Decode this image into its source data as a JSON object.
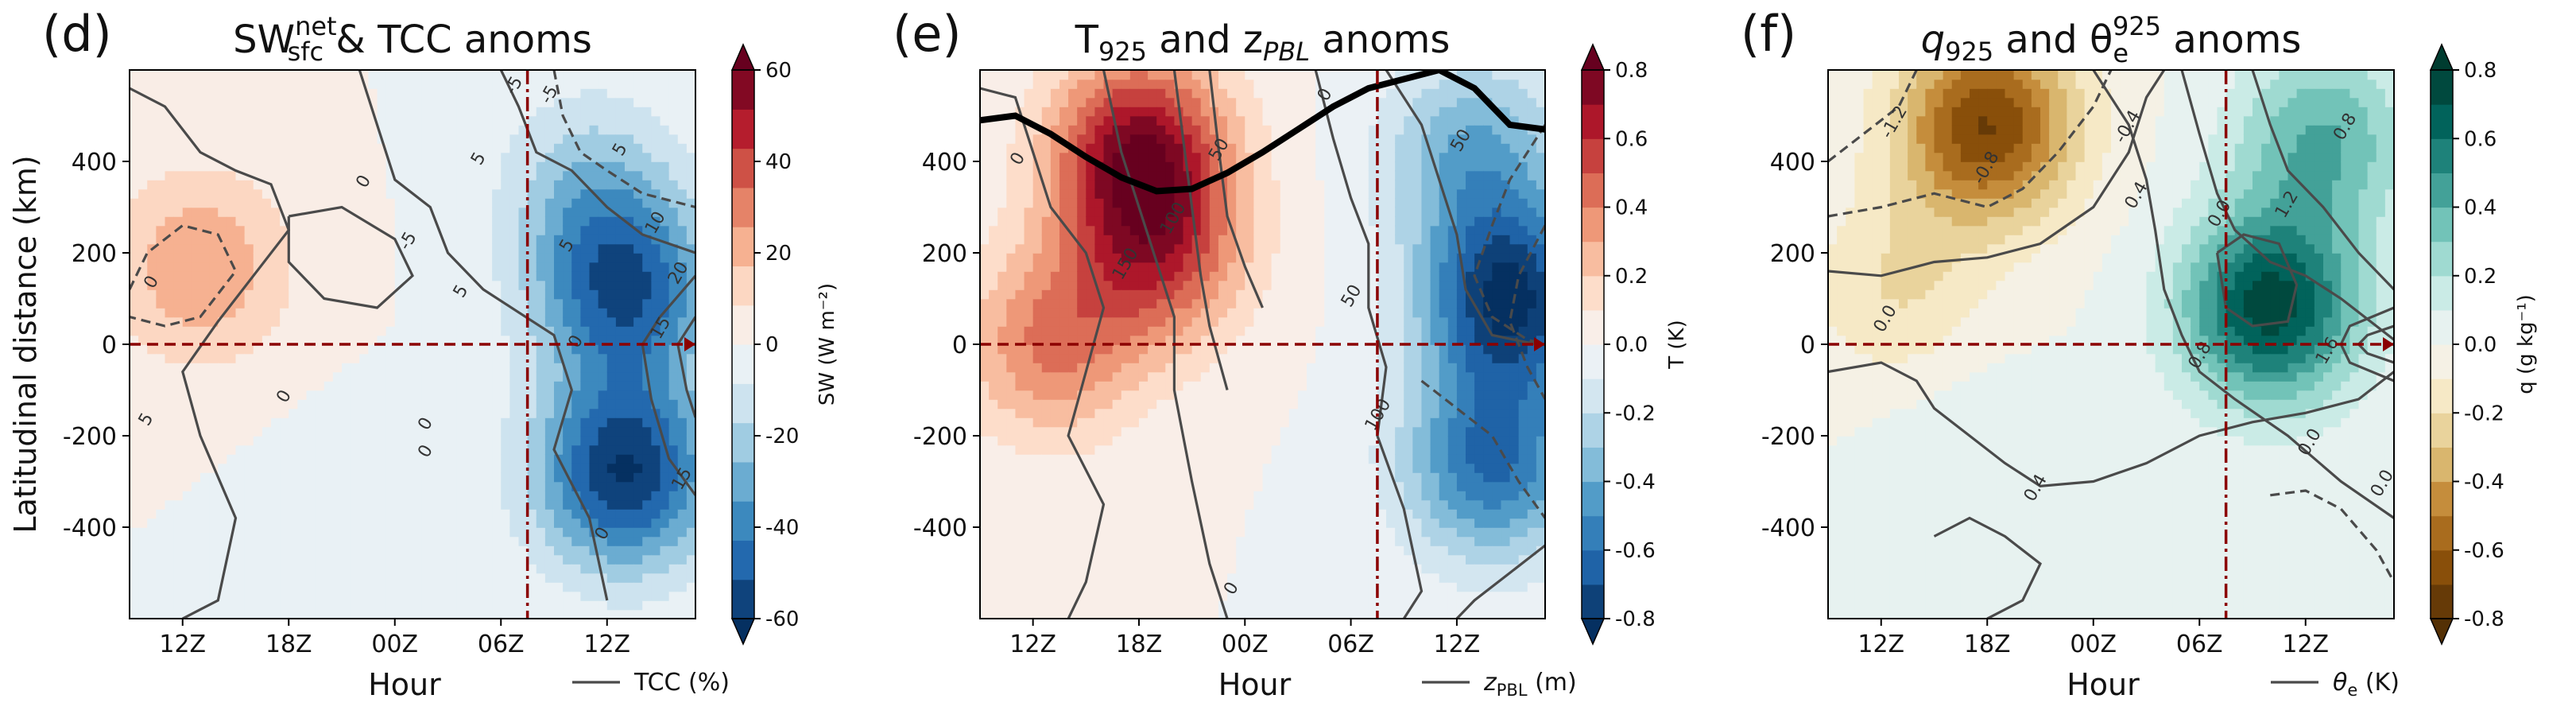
{
  "figure": {
    "shared_ylabel": "Latitudinal distance (km)",
    "shared_xlabel": "Hour"
  },
  "chart_data": [
    {
      "type": "heatmap",
      "panel_label": "(d)",
      "title": {
        "main": "SW",
        "sup": "net",
        "sub": "sfc",
        "rest": " & TCC anoms"
      },
      "xlabel": "Hour",
      "ylabel": "Latitudinal distance (km)",
      "x_ticks": [
        "12Z",
        "18Z",
        "00Z",
        "06Z",
        "12Z"
      ],
      "x_tick_hours": [
        0,
        6,
        12,
        18,
        24
      ],
      "xlim_hours": [
        -3,
        29
      ],
      "y_ticks": [
        400,
        200,
        0,
        -200,
        -400
      ],
      "ylim": [
        -600,
        600
      ],
      "vline_hour": 19.5,
      "hline_y": 0,
      "colormap": "RdBu_r",
      "colorbar": {
        "label": "SW (W m⁻²)",
        "ticks": [
          60,
          40,
          20,
          0,
          -20,
          -40,
          -60
        ],
        "range": [
          -60,
          60
        ],
        "levels": 15,
        "extend": "both"
      },
      "contour_legend": "TCC (%)",
      "contour_labels": [
        "0",
        "5",
        "-5",
        "5",
        "0",
        "0",
        "5",
        "-5",
        "0",
        "-5",
        "5",
        "0",
        "0",
        "10",
        "15",
        "20",
        "15",
        "5",
        "0"
      ],
      "field_features": [
        {
          "x_hour": 1,
          "y": 170,
          "value": 25
        },
        {
          "x_hour": 23,
          "y": 350,
          "value": -20
        },
        {
          "x_hour": 25,
          "y": 120,
          "value": -50
        },
        {
          "x_hour": 25,
          "y": -280,
          "value": -60
        },
        {
          "x_hour": 10,
          "y": -360,
          "value": -5
        }
      ]
    },
    {
      "type": "heatmap",
      "panel_label": "(e)",
      "title": {
        "main": "T",
        "sub": "925",
        "rest": " and z",
        "sub2": "PBL",
        "rest2": " anoms"
      },
      "xlabel": "Hour",
      "ylabel": "",
      "x_ticks": [
        "12Z",
        "18Z",
        "00Z",
        "06Z",
        "12Z"
      ],
      "x_tick_hours": [
        0,
        6,
        12,
        18,
        24
      ],
      "xlim_hours": [
        -3,
        29
      ],
      "y_ticks": [
        400,
        200,
        0,
        -200,
        -400
      ],
      "ylim": [
        -600,
        600
      ],
      "vline_hour": 19.5,
      "hline_y": 0,
      "colormap": "RdBu_r",
      "colorbar": {
        "label": "T (K)",
        "ticks": [
          0.8,
          0.6,
          0.4,
          0.2,
          0.0,
          -0.2,
          -0.4,
          -0.6,
          -0.8
        ],
        "range": [
          -0.8,
          0.8
        ],
        "levels": 17,
        "extend": "both"
      },
      "contour_legend": "z",
      "contour_legend_sub": "PBL",
      "contour_legend_unit": " (m)",
      "contour_labels": [
        "0",
        "0",
        "150",
        "100",
        "50",
        "50",
        "50",
        "100",
        "0"
      ],
      "thick_line": {
        "x_hours": [
          -3,
          -1,
          1,
          3,
          5,
          7,
          9,
          11,
          13,
          15,
          17,
          19,
          21,
          23,
          25,
          27,
          29
        ],
        "y": [
          490,
          500,
          460,
          410,
          365,
          335,
          340,
          375,
          420,
          470,
          520,
          560,
          580,
          600,
          560,
          480,
          470
        ]
      },
      "field_features": [
        {
          "x_hour": 6,
          "y": 430,
          "value": 0.7
        },
        {
          "x_hour": 7,
          "y": 200,
          "value": 0.5
        },
        {
          "x_hour": 1,
          "y": 0,
          "value": 0.4
        },
        {
          "x_hour": 27,
          "y": 100,
          "value": -0.8
        },
        {
          "x_hour": 25,
          "y": 420,
          "value": -0.4
        },
        {
          "x_hour": 26,
          "y": -260,
          "value": -0.6
        }
      ]
    },
    {
      "type": "heatmap",
      "panel_label": "(f)",
      "title": {
        "main": "q",
        "sub": "925",
        "rest": " and θ",
        "sub2": "e",
        "sup2": "925",
        "rest2": " anoms"
      },
      "xlabel": "Hour",
      "ylabel": "",
      "x_ticks": [
        "12Z",
        "18Z",
        "00Z",
        "06Z",
        "12Z"
      ],
      "x_tick_hours": [
        0,
        6,
        12,
        18,
        24
      ],
      "xlim_hours": [
        -3,
        29
      ],
      "y_ticks": [
        400,
        200,
        0,
        -200,
        -400
      ],
      "ylim": [
        -600,
        600
      ],
      "vline_hour": 19.5,
      "hline_y": 0,
      "colormap": "BrBG",
      "colorbar": {
        "label": "q (g kg⁻¹)",
        "ticks": [
          0.8,
          0.6,
          0.4,
          0.2,
          0.0,
          -0.2,
          -0.4,
          -0.6,
          -0.8
        ],
        "range": [
          -0.8,
          0.8
        ],
        "levels": 17,
        "extend": "both"
      },
      "contour_legend": "θ",
      "contour_legend_sub": "e",
      "contour_legend_unit": " (K)",
      "contour_labels": [
        "-1.2",
        "-0.8",
        "-0.4",
        "0.4",
        "0.8",
        "1.2",
        "0.0",
        "0.8",
        "1.6",
        "0.0",
        "0.4",
        "0.0",
        "0.0"
      ],
      "field_features": [
        {
          "x_hour": 6,
          "y": 480,
          "value": -0.7
        },
        {
          "x_hour": 1,
          "y": 120,
          "value": -0.2
        },
        {
          "x_hour": 22,
          "y": 80,
          "value": 0.75
        },
        {
          "x_hour": 25,
          "y": 450,
          "value": 0.4
        },
        {
          "x_hour": 5,
          "y": -250,
          "value": 0.1
        }
      ]
    }
  ]
}
